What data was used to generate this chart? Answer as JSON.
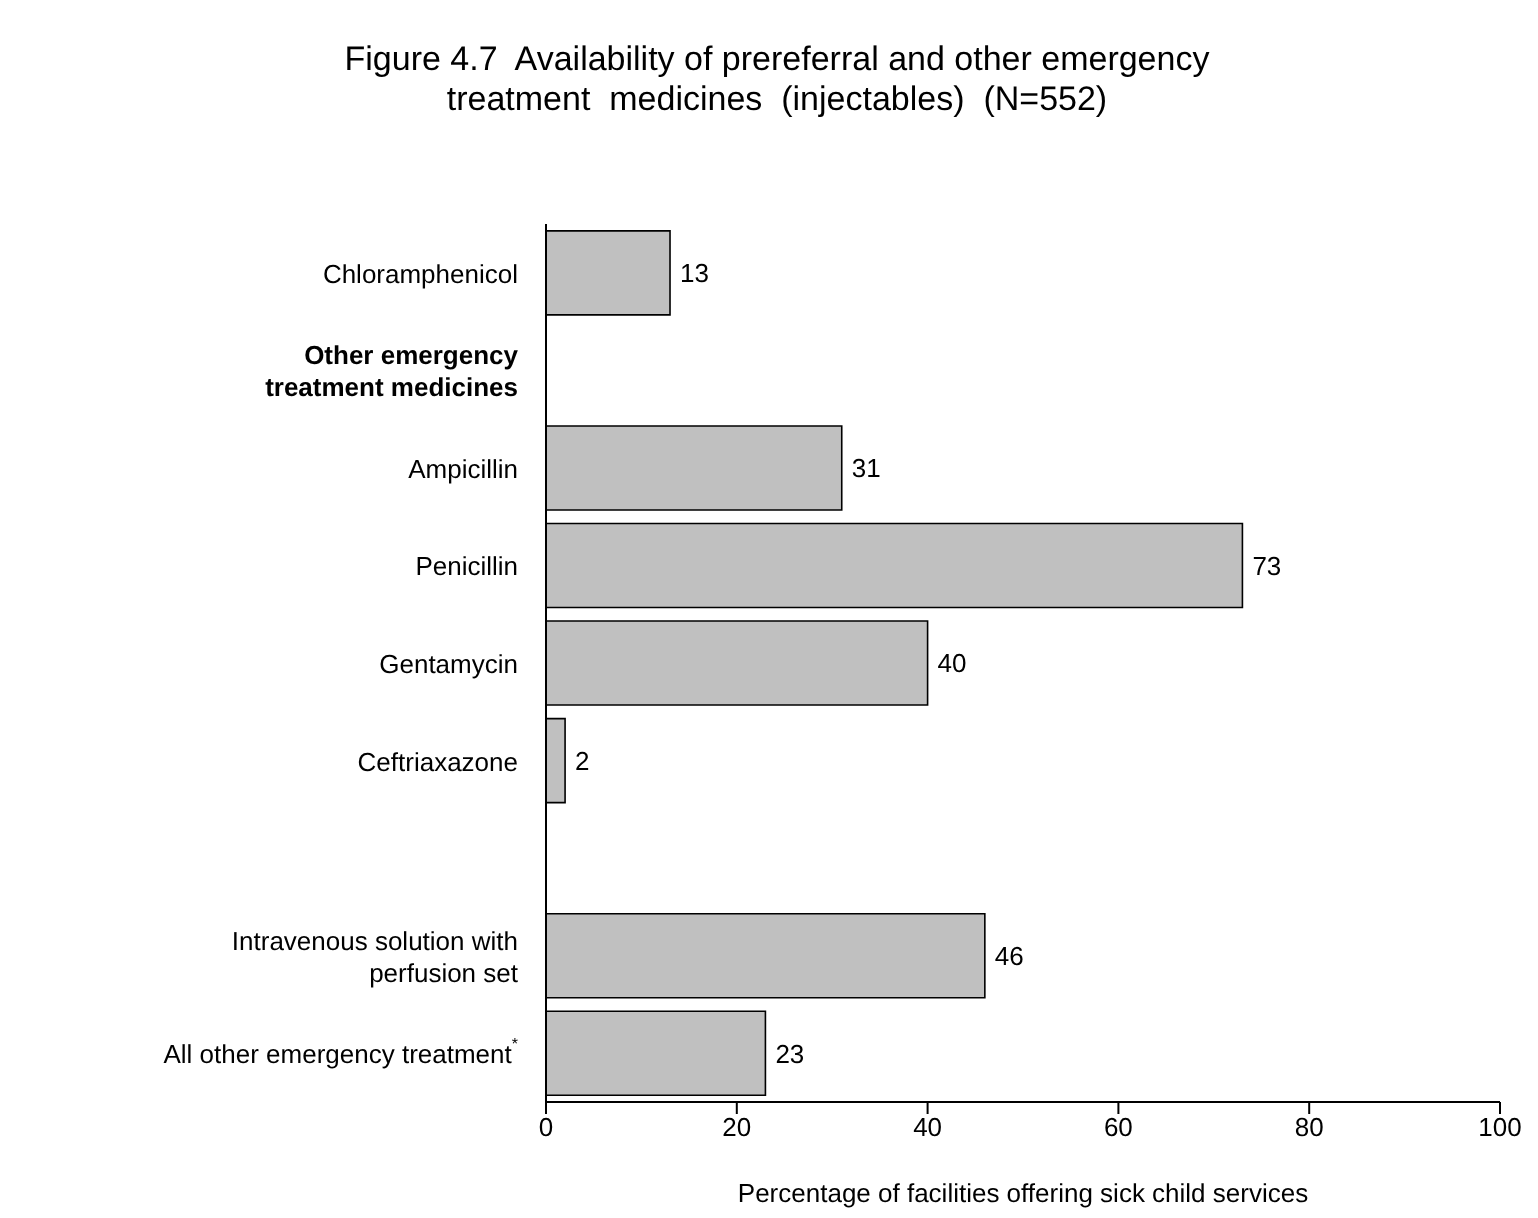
{
  "chart_data": {
    "type": "bar",
    "orientation": "horizontal",
    "title": "Figure 4.7  Availability of prereferral and other emergency\ntreatment  medicines  (injectables)  (N=552)",
    "xlabel": "Percentage of facilities offering sick child services",
    "categories": [
      "Chloramphenicol",
      "Other emergency\ntreatment medicines",
      "Ampicillin",
      "Penicillin",
      "Gentamycin",
      "Ceftriaxazone",
      null,
      "Intravenous solution with\nperfusion set",
      "All other emergency treatment$^{*}$"
    ],
    "values": [
      13,
      null,
      31,
      73,
      40,
      2,
      null,
      46,
      23
    ],
    "color": "#c0c0c0",
    "xlim": [
      0,
      100
    ],
    "xticks": [
      0,
      20,
      40,
      60,
      80,
      100
    ],
    "grid": false,
    "data_labels": true
  }
}
